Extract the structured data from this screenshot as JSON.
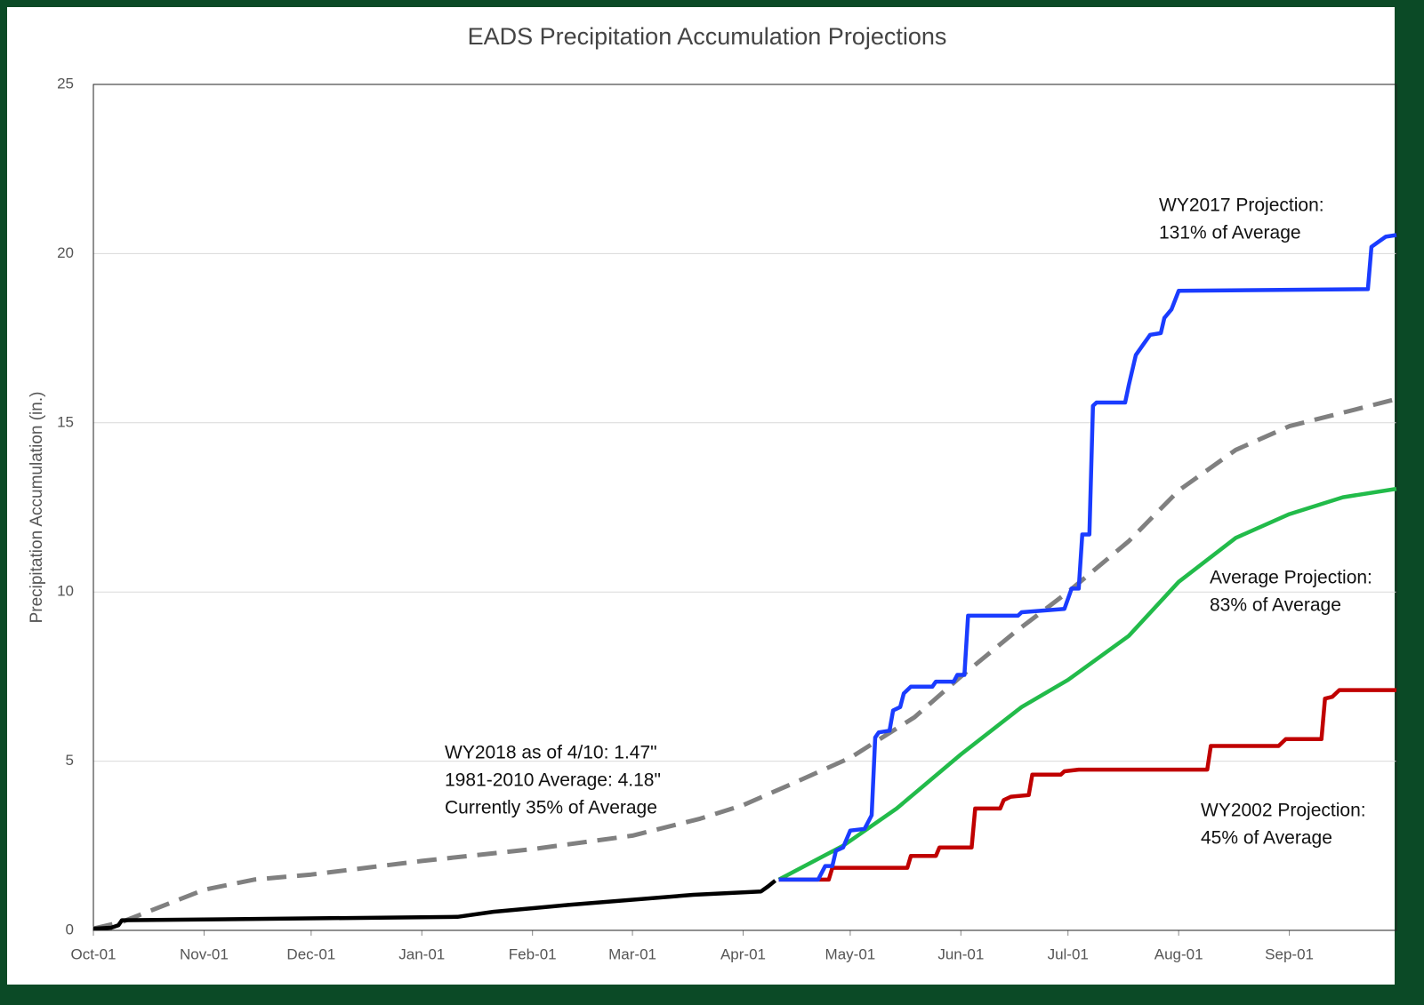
{
  "chart_data": {
    "type": "line",
    "title": "EADS Precipitation Accumulation Projections",
    "ylabel": "Precipitation Accumulation (in.)",
    "xlim": [
      0,
      365
    ],
    "xticks": [
      {
        "value": 0,
        "label": "Oct-01"
      },
      {
        "value": 31,
        "label": "Nov-01"
      },
      {
        "value": 61,
        "label": "Dec-01"
      },
      {
        "value": 92,
        "label": "Jan-01"
      },
      {
        "value": 123,
        "label": "Feb-01"
      },
      {
        "value": 151,
        "label": "Mar-01"
      },
      {
        "value": 182,
        "label": "Apr-01"
      },
      {
        "value": 212,
        "label": "May-01"
      },
      {
        "value": 243,
        "label": "Jun-01"
      },
      {
        "value": 273,
        "label": "Jul-01"
      },
      {
        "value": 304,
        "label": "Aug-01"
      },
      {
        "value": 335,
        "label": "Sep-01"
      }
    ],
    "ylim": [
      0,
      25
    ],
    "yticks": [
      0,
      5,
      10,
      15,
      20,
      25
    ],
    "grid": true,
    "series": [
      {
        "color": "#808080",
        "dashed": true,
        "x": [
          0,
          8,
          31,
          45,
          61,
          92,
          123,
          151,
          170,
          182,
          195,
          212,
          230,
          243,
          258,
          273,
          290,
          304,
          320,
          335,
          350,
          365
        ],
        "values": [
          0.05,
          0.25,
          1.2,
          1.5,
          1.65,
          2.05,
          2.4,
          2.8,
          3.3,
          3.7,
          4.3,
          5.1,
          6.3,
          7.5,
          8.8,
          10.0,
          11.5,
          13.0,
          14.2,
          14.9,
          15.3,
          15.7
        ]
      },
      {
        "color": "#22bb4a",
        "dashed": false,
        "x": [
          192,
          210,
          225,
          243,
          260,
          273,
          290,
          304,
          320,
          335,
          350,
          365
        ],
        "values": [
          1.5,
          2.5,
          3.6,
          5.2,
          6.6,
          7.4,
          8.7,
          10.3,
          11.6,
          12.3,
          12.8,
          13.05
        ]
      },
      {
        "color": "#c00000",
        "dashed": false,
        "x": [
          192,
          206,
          207,
          228,
          229,
          236,
          237,
          246,
          247,
          254,
          255,
          257,
          262,
          263,
          271,
          272,
          276,
          312,
          313,
          332,
          334,
          344,
          345,
          347,
          349,
          365
        ],
        "values": [
          1.5,
          1.5,
          1.85,
          1.85,
          2.2,
          2.2,
          2.45,
          2.45,
          3.6,
          3.6,
          3.85,
          3.95,
          4.0,
          4.6,
          4.6,
          4.7,
          4.75,
          4.75,
          5.45,
          5.45,
          5.65,
          5.65,
          6.85,
          6.9,
          7.1,
          7.1
        ]
      },
      {
        "color": "#1a3cff",
        "dashed": false,
        "x": [
          192,
          203,
          205,
          207,
          208,
          210,
          212,
          216,
          218,
          219,
          220,
          223,
          224,
          226,
          227,
          229,
          235,
          236,
          241,
          242,
          244,
          245,
          259,
          260,
          266,
          272,
          274,
          276,
          277,
          279,
          280,
          281,
          289,
          290,
          292,
          294,
          296,
          299,
          300,
          302,
          304,
          357,
          358,
          360,
          362,
          365
        ],
        "values": [
          1.5,
          1.5,
          1.9,
          1.9,
          2.35,
          2.45,
          2.95,
          3.0,
          3.4,
          5.7,
          5.85,
          5.9,
          6.5,
          6.6,
          7.0,
          7.2,
          7.2,
          7.35,
          7.35,
          7.55,
          7.55,
          9.3,
          9.3,
          9.4,
          9.45,
          9.5,
          10.1,
          10.1,
          11.7,
          11.7,
          15.5,
          15.6,
          15.6,
          16.1,
          17.0,
          17.3,
          17.6,
          17.65,
          18.1,
          18.35,
          18.9,
          18.95,
          20.2,
          20.35,
          20.5,
          20.55
        ]
      },
      {
        "color": "#000000",
        "dashed": false,
        "x": [
          0,
          5,
          7,
          8,
          40,
          102,
          112,
          128,
          133,
          168,
          187,
          189,
          191
        ],
        "values": [
          0.05,
          0.08,
          0.15,
          0.3,
          0.33,
          0.4,
          0.55,
          0.7,
          0.75,
          1.05,
          1.15,
          1.3,
          1.47
        ]
      }
    ],
    "annotations": [
      {
        "lines": [
          "WY2018 as of 4/10: 1.47\"",
          "1981-2010 Average: 4.18\"",
          "Currently 35% of Average"
        ]
      },
      {
        "lines": [
          "WY2017 Projection:",
          "131% of Average"
        ]
      },
      {
        "lines": [
          "Average Projection:",
          "83% of Average"
        ]
      },
      {
        "lines": [
          "WY2002 Projection:",
          "45% of Average"
        ]
      }
    ]
  }
}
